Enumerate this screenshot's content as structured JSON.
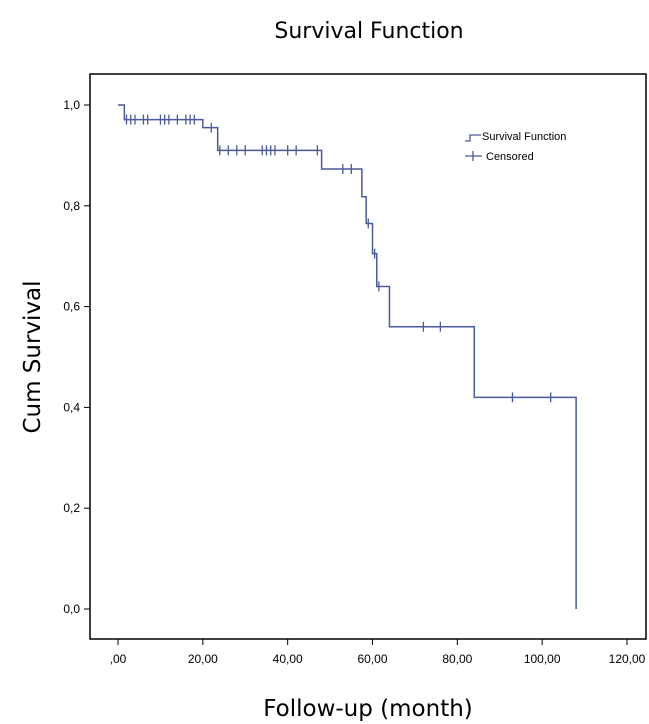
{
  "chart_data": {
    "type": "line",
    "title": "Survival Function",
    "xlabel": "Follow-up (month)",
    "ylabel": "Cum Survival",
    "xlim": [
      0,
      120
    ],
    "ylim": [
      0,
      1
    ],
    "x_ticks": [
      0,
      20,
      40,
      60,
      80,
      100,
      120
    ],
    "x_tick_labels": [
      ",00",
      "20,00",
      "40,00",
      "60,00",
      "80,00",
      "100,00",
      "120,00"
    ],
    "y_ticks": [
      0,
      0.2,
      0.4,
      0.6,
      0.8,
      1.0
    ],
    "y_tick_labels": [
      "0,0",
      "0,2",
      "0,4",
      "0,6",
      "0,8",
      "1,0"
    ],
    "grid": false,
    "legend_position": "top-right",
    "series": [
      {
        "name": "Survival Function",
        "kind": "step",
        "color": "#4a5a9c",
        "x": [
          0,
          1.5,
          20,
          23.5,
          48,
          57.5,
          58.5,
          60,
          61,
          64,
          84,
          108,
          108
        ],
        "y": [
          1.0,
          0.971,
          0.955,
          0.91,
          0.873,
          0.818,
          0.765,
          0.705,
          0.64,
          0.56,
          0.42,
          0.42,
          0.0
        ]
      },
      {
        "name": "Censored",
        "kind": "marks",
        "color": "#4a5a9c",
        "x": [
          2,
          3,
          4,
          6,
          7,
          10,
          11,
          12,
          14,
          16,
          17,
          18,
          22,
          24,
          26,
          28,
          30,
          34,
          35,
          36,
          37,
          40,
          42,
          47,
          53,
          55,
          59,
          60.5,
          61.5,
          72,
          76,
          93,
          102
        ],
        "y": [
          0.971,
          0.971,
          0.971,
          0.971,
          0.971,
          0.971,
          0.971,
          0.971,
          0.971,
          0.971,
          0.971,
          0.971,
          0.955,
          0.91,
          0.91,
          0.91,
          0.91,
          0.91,
          0.91,
          0.91,
          0.91,
          0.91,
          0.91,
          0.91,
          0.873,
          0.873,
          0.765,
          0.705,
          0.64,
          0.56,
          0.56,
          0.42,
          0.42
        ]
      }
    ]
  }
}
